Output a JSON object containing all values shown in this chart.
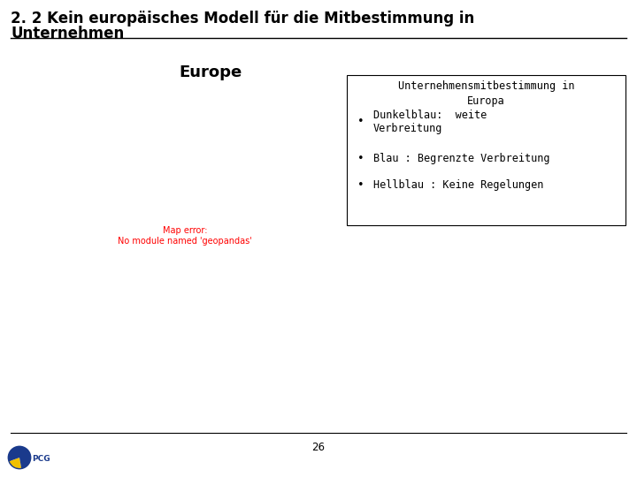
{
  "title_line1": "2. 2 Kein europäisches Modell für die Mitbestimmung in",
  "title_line2": "Unternehmen",
  "map_label": "Europe",
  "legend_title": "Unternehmensmitbestimmung in\nEuropa",
  "legend_items": [
    "Dunkelblau:  weite\nVerbreitung",
    "Blau : Begrenzte Verbreitung",
    "Hellblau : Keine Regelungen"
  ],
  "page_number": "26",
  "bg_color": "#ffffff",
  "title_color": "#000000",
  "title_fontsize": 12,
  "map_label_fontsize": 13,
  "legend_fontsize": 8.5,
  "separator_color": "#000000",
  "footer_separator_color": "#000000",
  "dark_blue": "#0d3d8c",
  "medium_blue": "#3d7cc9",
  "light_blue": "#5bbcd6",
  "outline_only": "#d0d0d0",
  "country_colors": {
    "Norway": "dark_blue",
    "Sweden": "dark_blue",
    "Finland": "dark_blue",
    "Denmark": "dark_blue",
    "Netherlands": "dark_blue",
    "Germany": "dark_blue",
    "Austria": "dark_blue",
    "Czech Republic": "dark_blue",
    "Czechia": "dark_blue",
    "Slovakia": "dark_blue",
    "Hungary": "dark_blue",
    "Poland": "dark_blue",
    "Luxembourg": "dark_blue",
    "Liechtenstein": "dark_blue",
    "France": "medium_blue",
    "Spain": "medium_blue",
    "Ireland": "medium_blue",
    "Belgium": "medium_blue",
    "Greece": "medium_blue",
    "United Kingdom": "light_blue",
    "Italy": "light_blue",
    "Estonia": "light_blue",
    "Latvia": "light_blue",
    "Lithuania": "light_blue",
    "Portugal": "light_blue",
    "Romania": "light_blue",
    "Bulgaria": "light_blue",
    "Slovenia": "light_blue",
    "Croatia": "light_blue",
    "Serbia": "light_blue",
    "Bosnia and Herz.": "light_blue",
    "Bosnia and Herzegovina": "light_blue",
    "Montenegro": "light_blue",
    "North Macedonia": "light_blue",
    "Albania": "light_blue",
    "Moldova": "light_blue",
    "Iceland": "outline_only",
    "Switzerland": "dark_blue",
    "Belarus": "outline_only",
    "Ukraine": "outline_only",
    "Russia": "outline_only",
    "Turkey": "outline_only",
    "Cyprus": "light_blue",
    "Malta": "light_blue",
    "Kosovo": "light_blue"
  }
}
